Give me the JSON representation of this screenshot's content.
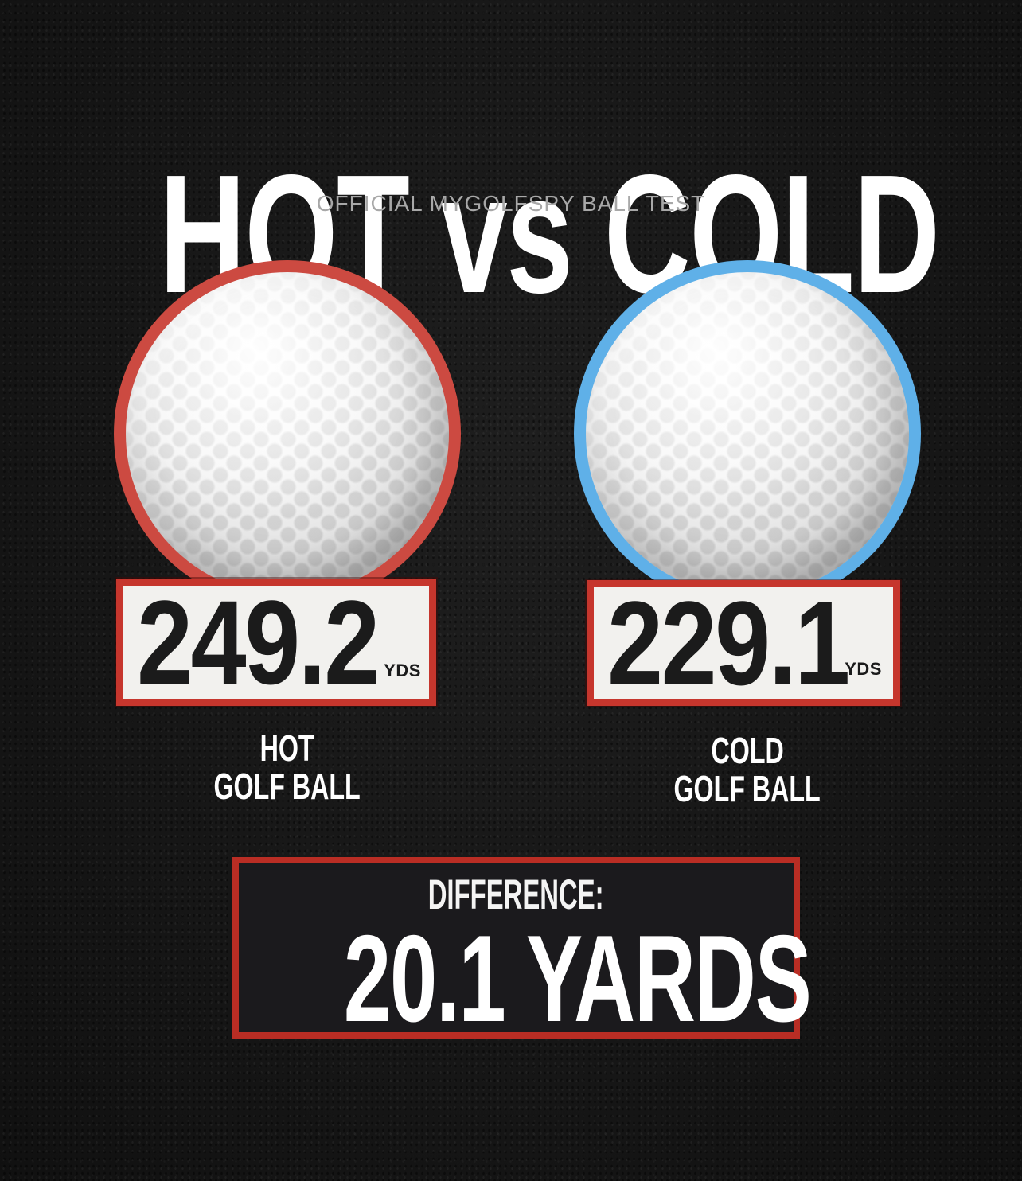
{
  "header": {
    "title_left": "HOT",
    "title_mid": "vs",
    "title_right": "COLD",
    "subtitle": "OFFICIAL MYGOLFSPY BALL TEST"
  },
  "balls": [
    {
      "name": "hot",
      "ring_color": "#cc4a41",
      "distance": "249.2",
      "unit": "YDS",
      "label_line1": "HOT",
      "label_line2": "GOLF BALL"
    },
    {
      "name": "cold",
      "ring_color": "#5fb0e8",
      "distance": "229.1",
      "unit": "YDS",
      "label_line1": "COLD",
      "label_line2": "GOLF BALL"
    }
  ],
  "difference": {
    "label": "DIFFERENCE:",
    "value": "20.1 YARDS"
  },
  "colors": {
    "background": "#151515",
    "hot_ring": "#cc4a41",
    "cold_ring": "#5fb0e8",
    "plate_border": "#c6362d",
    "plate_background": "#f2f1ee",
    "difference_border": "#b92d24",
    "difference_background": "#1b1a1d",
    "title_white": "#ffffff",
    "subtitle_gray": "#a8a8a8",
    "number_black": "#1b1b1b"
  },
  "chart_data": {
    "type": "bar",
    "title": "HOT vs COLD",
    "subtitle": "OFFICIAL MYGOLFSPY BALL TEST",
    "categories": [
      "HOT GOLF BALL",
      "COLD GOLF BALL"
    ],
    "values": [
      249.2,
      229.1
    ],
    "unit": "YDS",
    "series_colors": [
      "#cc4a41",
      "#5fb0e8"
    ],
    "annotations": [
      "DIFFERENCE: 20.1 YARDS"
    ]
  }
}
